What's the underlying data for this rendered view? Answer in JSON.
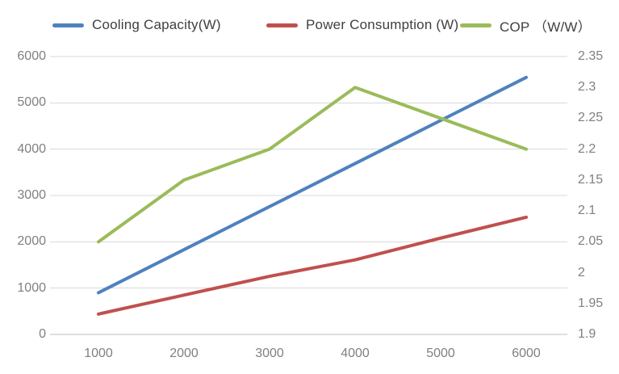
{
  "chart_data": {
    "type": "line",
    "title": "",
    "x": [
      1000,
      2000,
      3000,
      4000,
      5000,
      6000
    ],
    "series": [
      {
        "name": "Cooling Capacity(W)",
        "axis": "left",
        "color": "#4F81BD",
        "values": [
          900,
          1830,
          2760,
          3690,
          4620,
          5550
        ]
      },
      {
        "name": "Power Consumption (W)",
        "axis": "left",
        "color": "#C0504D",
        "values": [
          440,
          850,
          1255,
          1610,
          2080,
          2530
        ]
      },
      {
        "name": "COP （W/W）",
        "axis": "right",
        "color": "#9BBB59",
        "values": [
          2.05,
          2.15,
          2.2,
          2.3,
          2.25,
          2.2
        ]
      }
    ],
    "x_axis": {
      "tick_labels": [
        "1000",
        "2000",
        "3000",
        "4000",
        "5000",
        "6000"
      ]
    },
    "left_axis": {
      "min": 0,
      "max": 6000,
      "step": 1000,
      "tick_labels": [
        "0",
        "1000",
        "2000",
        "3000",
        "4000",
        "5000",
        "6000"
      ]
    },
    "right_axis": {
      "min": 1.9,
      "max": 2.35,
      "step": 0.05,
      "tick_labels": [
        "1.9",
        "1.95",
        "2",
        "2.05",
        "2.1",
        "2.15",
        "2.2",
        "2.25",
        "2.3",
        "2.35"
      ]
    },
    "legend_position": "top",
    "grid": true,
    "colors": {
      "grid_line": "#D9D9D9",
      "axis_line": "#BFBFBF",
      "tick_label": "#808080",
      "legend_text": "#404040",
      "background": "#FFFFFF"
    }
  }
}
